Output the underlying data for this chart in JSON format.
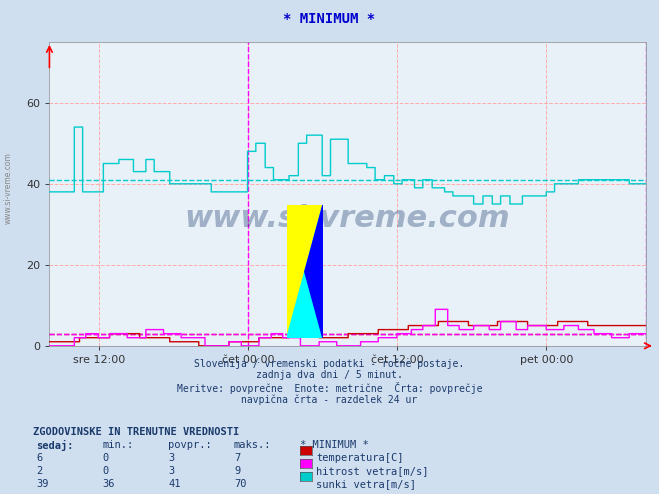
{
  "title": "* MINIMUM *",
  "title_color": "#0000cc",
  "bg_color": "#d0dff0",
  "plot_bg_color": "#e8f0f8",
  "grid_color_h": "#ffaaaa",
  "grid_color_v": "#ffaaaa",
  "ylim": [
    0,
    75
  ],
  "yticks": [
    0,
    20,
    40,
    60
  ],
  "xlabel_ticks": [
    "sre 12:00",
    "čet 00:00",
    "čet 12:00",
    "pet 00:00"
  ],
  "xlabel_tick_positions": [
    0.083,
    0.333,
    0.583,
    0.833
  ],
  "avg_line_cyan": 41,
  "avg_line_red": 3,
  "avg_line_magenta": 3,
  "watermark": "www.si-vreme.com",
  "footnote_lines": [
    "Slovenija / vremenski podatki - ročne postaje.",
    "zadnja dva dni / 5 minut.",
    "Meritve: povprečne  Enote: metrične  Črta: povprečje",
    "navpična črta - razdelek 24 ur"
  ],
  "table_header": "ZGODOVINSKE IN TRENUTNE VREDNOSTI",
  "table_cols": [
    "sedaj:",
    "min.:",
    "povpr.:",
    "maks.:",
    "* MINIMUM *"
  ],
  "table_rows": [
    [
      6,
      0,
      3,
      7,
      "temperatura[C]",
      "#cc0000"
    ],
    [
      2,
      0,
      3,
      9,
      "hitrost vetra[m/s]",
      "#ff00ff"
    ],
    [
      39,
      36,
      41,
      70,
      "sunki vetra[m/s]",
      "#00cccc"
    ]
  ],
  "n_points": 576,
  "temp_color": "#cc0000",
  "wind_color": "#ff00ff",
  "gust_color": "#00cccc",
  "avg_color_cyan": "#00cccc",
  "avg_color_red": "#cc0000",
  "avg_color_magenta": "#ff00ff"
}
